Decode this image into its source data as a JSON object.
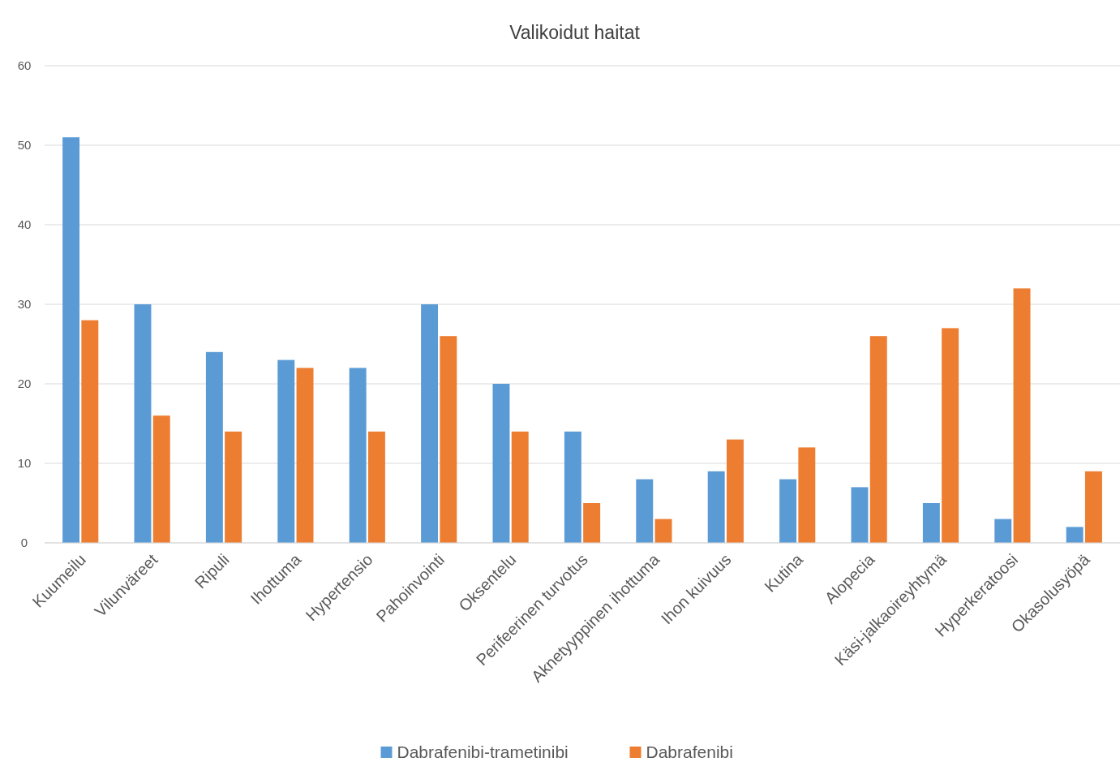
{
  "chart_data": {
    "type": "bar",
    "title": "Valikoidut haitat",
    "categories": [
      "Kuumeilu",
      "Vilunväreet",
      "Ripuli",
      "Ihottuma",
      "Hypertensio",
      "Pahoinvointi",
      "Oksentelu",
      "Perifeerinen turvotus",
      "Aknetyyppinen ihottuma",
      "Ihon kuivuus",
      "Kutina",
      "Alopecia",
      "Käsi-jalkaoireyhtymä",
      "Hyperkeratoosi",
      "Okasolusyöpä"
    ],
    "series": [
      {
        "name": "Dabrafenibi-trametinibi",
        "color": "#5b9bd5",
        "values": [
          51,
          30,
          24,
          23,
          22,
          30,
          20,
          14,
          8,
          9,
          8,
          7,
          5,
          3,
          2
        ]
      },
      {
        "name": "Dabrafenibi",
        "color": "#ed7d31",
        "values": [
          28,
          16,
          14,
          22,
          14,
          26,
          14,
          5,
          3,
          13,
          12,
          26,
          27,
          32,
          9
        ]
      }
    ],
    "ylim": [
      0,
      60
    ],
    "yticks": [
      0,
      10,
      20,
      30,
      40,
      50,
      60
    ],
    "grid": "y",
    "legend": "bottom"
  }
}
